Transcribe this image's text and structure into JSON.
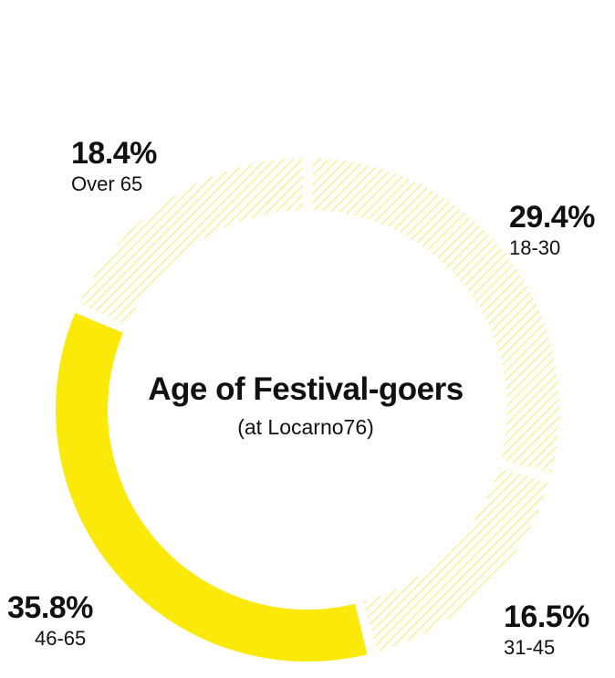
{
  "chart_data": {
    "type": "pie",
    "title": "Age of Festival-goers",
    "subtitle": "(at Locarno76)",
    "slices": [
      {
        "label": "18-30",
        "value": 29.4,
        "value_label": "29.4%",
        "highlighted": false
      },
      {
        "label": "31-45",
        "value": 16.5,
        "value_label": "16.5%",
        "highlighted": false
      },
      {
        "label": "46-65",
        "value": 35.8,
        "value_label": "35.8%",
        "highlighted": true
      },
      {
        "label": "Over 65",
        "value": 18.4,
        "value_label": "18.4%",
        "highlighted": false
      }
    ],
    "colors": {
      "highlight": "#fbe90a",
      "hatch": "#ede84a",
      "text": "#111111",
      "background": "#ffffff"
    }
  }
}
